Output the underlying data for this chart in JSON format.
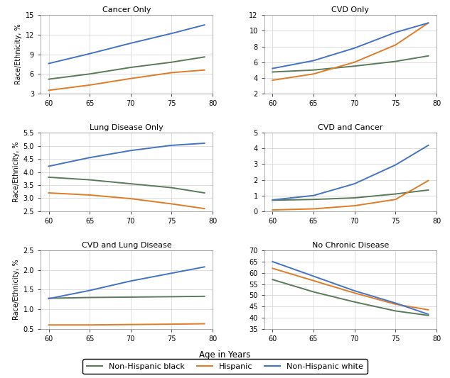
{
  "ages": [
    60,
    65,
    70,
    75,
    79
  ],
  "panels": [
    {
      "title": "Cancer Only",
      "ylim": [
        3,
        15
      ],
      "yticks": [
        3,
        6,
        9,
        12,
        15
      ],
      "nhb": [
        5.2,
        6.0,
        7.0,
        7.8,
        8.6
      ],
      "hisp": [
        3.5,
        4.3,
        5.3,
        6.2,
        6.6
      ],
      "nhw": [
        7.6,
        9.1,
        10.7,
        12.2,
        13.5
      ]
    },
    {
      "title": "CVD Only",
      "ylim": [
        2,
        12
      ],
      "yticks": [
        2,
        4,
        6,
        8,
        10,
        12
      ],
      "nhb": [
        4.75,
        5.0,
        5.5,
        6.1,
        6.8
      ],
      "hisp": [
        3.7,
        4.5,
        6.0,
        8.2,
        11.0
      ],
      "nhw": [
        5.2,
        6.2,
        7.8,
        9.8,
        11.0
      ]
    },
    {
      "title": "Lung Disease Only",
      "ylim": [
        2.5,
        5.5
      ],
      "yticks": [
        2.5,
        3.0,
        3.5,
        4.0,
        4.5,
        5.0,
        5.5
      ],
      "nhb": [
        3.8,
        3.7,
        3.55,
        3.4,
        3.2
      ],
      "hisp": [
        3.2,
        3.12,
        2.98,
        2.78,
        2.6
      ],
      "nhw": [
        4.22,
        4.55,
        4.82,
        5.02,
        5.1
      ]
    },
    {
      "title": "CVD and Cancer",
      "ylim": [
        0,
        5
      ],
      "yticks": [
        0,
        1,
        2,
        3,
        4,
        5
      ],
      "nhb": [
        0.7,
        0.75,
        0.85,
        1.1,
        1.35
      ],
      "hisp": [
        0.08,
        0.15,
        0.35,
        0.75,
        1.95
      ],
      "nhw": [
        0.72,
        1.0,
        1.75,
        2.95,
        4.2
      ]
    },
    {
      "title": "CVD and Lung Disease",
      "ylim": [
        0.5,
        2.5
      ],
      "yticks": [
        0.5,
        1.0,
        1.5,
        2.0,
        2.5
      ],
      "nhb": [
        1.28,
        1.3,
        1.31,
        1.32,
        1.33
      ],
      "hisp": [
        0.6,
        0.6,
        0.61,
        0.62,
        0.63
      ],
      "nhw": [
        1.27,
        1.48,
        1.72,
        1.92,
        2.08
      ]
    },
    {
      "title": "No Chronic Disease",
      "ylim": [
        35,
        70
      ],
      "yticks": [
        35,
        40,
        45,
        50,
        55,
        60,
        65,
        70
      ],
      "nhb": [
        57.0,
        51.5,
        47.0,
        43.0,
        41.0
      ],
      "hisp": [
        62.0,
        56.5,
        51.0,
        46.0,
        43.5
      ],
      "nhw": [
        65.0,
        58.5,
        52.0,
        46.5,
        41.5
      ]
    }
  ],
  "nhb_color": "#5a7a5a",
  "hisp_color": "#e07b28",
  "nhw_color": "#4472c4",
  "ylabel": "Race/Ethnicity, %",
  "xlabel": "Age in Years",
  "legend_labels": [
    "Non-Hispanic black",
    "Hispanic",
    "Non-Hispanic white"
  ],
  "bg_color": "#f0f0f0"
}
